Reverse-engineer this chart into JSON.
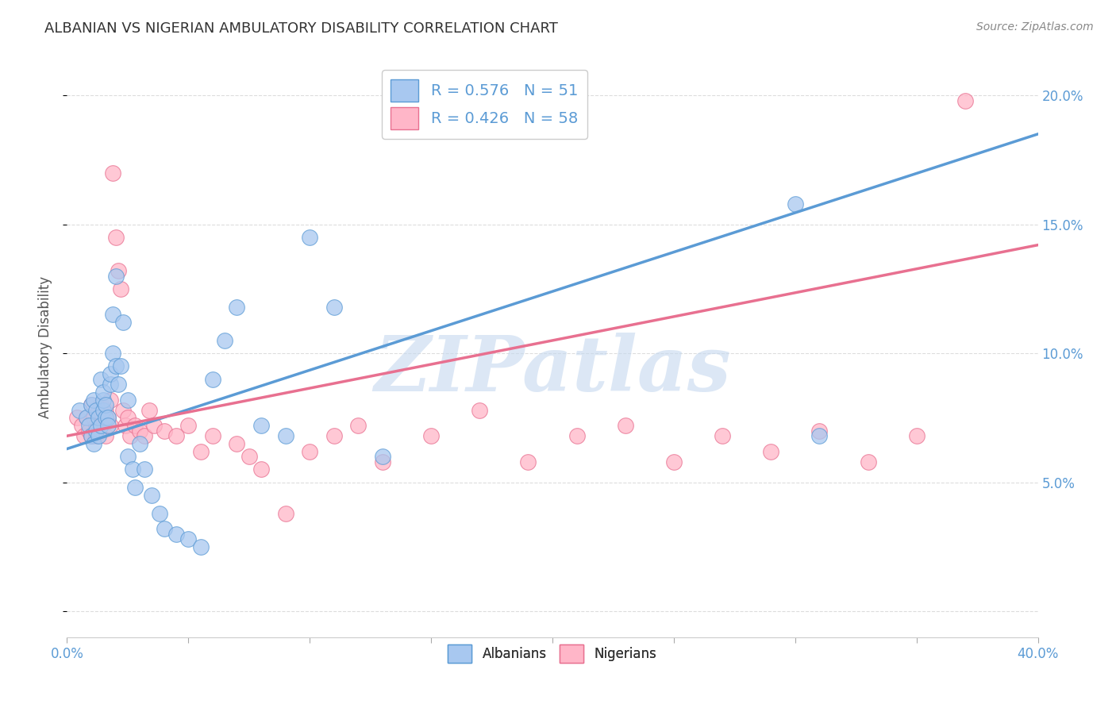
{
  "title": "ALBANIAN VS NIGERIAN AMBULATORY DISABILITY CORRELATION CHART",
  "source": "Source: ZipAtlas.com",
  "ylabel": "Ambulatory Disability",
  "xlim": [
    0.0,
    0.4
  ],
  "ylim": [
    -0.01,
    0.215
  ],
  "plot_ylim": [
    -0.01,
    0.215
  ],
  "xticks": [
    0.0,
    0.05,
    0.1,
    0.15,
    0.2,
    0.25,
    0.3,
    0.35,
    0.4
  ],
  "yticks": [
    0.0,
    0.05,
    0.1,
    0.15,
    0.2
  ],
  "xtick_labels": [
    "0.0%",
    "",
    "",
    "",
    "",
    "",
    "",
    "",
    "40.0%"
  ],
  "ytick_labels_right": [
    "",
    "5.0%",
    "10.0%",
    "15.0%",
    "20.0%"
  ],
  "albanian_color": "#A8C8F0",
  "nigerian_color": "#FFB6C8",
  "line_albanian_color": "#5B9BD5",
  "line_nigerian_color": "#E87090",
  "watermark": "ZIPatlas",
  "watermark_color": "#C5D8EF",
  "legend_R_albanian": "R = 0.576",
  "legend_N_albanian": "N = 51",
  "legend_R_nigerian": "R = 0.426",
  "legend_N_nigerian": "N = 58",
  "albanian_R": 0.576,
  "albanian_N": 51,
  "nigerian_R": 0.426,
  "nigerian_N": 58,
  "alb_line_x0": 0.0,
  "alb_line_y0": 0.063,
  "alb_line_x1": 0.4,
  "alb_line_y1": 0.185,
  "nig_line_x0": 0.0,
  "nig_line_y0": 0.068,
  "nig_line_x1": 0.4,
  "nig_line_y1": 0.142,
  "albanian_scatter_x": [
    0.005,
    0.008,
    0.009,
    0.01,
    0.01,
    0.011,
    0.011,
    0.012,
    0.012,
    0.013,
    0.013,
    0.014,
    0.014,
    0.015,
    0.015,
    0.015,
    0.016,
    0.016,
    0.017,
    0.017,
    0.018,
    0.018,
    0.019,
    0.019,
    0.02,
    0.02,
    0.021,
    0.022,
    0.023,
    0.025,
    0.025,
    0.027,
    0.028,
    0.03,
    0.032,
    0.035,
    0.038,
    0.04,
    0.045,
    0.05,
    0.055,
    0.06,
    0.065,
    0.07,
    0.08,
    0.09,
    0.1,
    0.11,
    0.13,
    0.3,
    0.31
  ],
  "albanian_scatter_y": [
    0.078,
    0.075,
    0.072,
    0.068,
    0.08,
    0.065,
    0.082,
    0.07,
    0.078,
    0.068,
    0.075,
    0.09,
    0.072,
    0.078,
    0.082,
    0.085,
    0.075,
    0.08,
    0.075,
    0.072,
    0.088,
    0.092,
    0.1,
    0.115,
    0.095,
    0.13,
    0.088,
    0.095,
    0.112,
    0.082,
    0.06,
    0.055,
    0.048,
    0.065,
    0.055,
    0.045,
    0.038,
    0.032,
    0.03,
    0.028,
    0.025,
    0.09,
    0.105,
    0.118,
    0.072,
    0.068,
    0.145,
    0.118,
    0.06,
    0.158,
    0.068
  ],
  "nigerian_scatter_x": [
    0.004,
    0.006,
    0.007,
    0.008,
    0.009,
    0.01,
    0.01,
    0.011,
    0.012,
    0.012,
    0.013,
    0.014,
    0.014,
    0.015,
    0.015,
    0.016,
    0.016,
    0.017,
    0.018,
    0.018,
    0.019,
    0.02,
    0.021,
    0.022,
    0.023,
    0.024,
    0.025,
    0.026,
    0.028,
    0.03,
    0.032,
    0.034,
    0.036,
    0.04,
    0.045,
    0.05,
    0.055,
    0.06,
    0.07,
    0.075,
    0.08,
    0.09,
    0.1,
    0.11,
    0.12,
    0.13,
    0.15,
    0.17,
    0.19,
    0.21,
    0.23,
    0.25,
    0.27,
    0.29,
    0.31,
    0.33,
    0.35,
    0.37
  ],
  "nigerian_scatter_y": [
    0.075,
    0.072,
    0.068,
    0.075,
    0.07,
    0.068,
    0.08,
    0.075,
    0.072,
    0.068,
    0.078,
    0.07,
    0.08,
    0.075,
    0.072,
    0.068,
    0.078,
    0.075,
    0.072,
    0.082,
    0.17,
    0.145,
    0.132,
    0.125,
    0.078,
    0.072,
    0.075,
    0.068,
    0.072,
    0.07,
    0.068,
    0.078,
    0.072,
    0.07,
    0.068,
    0.072,
    0.062,
    0.068,
    0.065,
    0.06,
    0.055,
    0.038,
    0.062,
    0.068,
    0.072,
    0.058,
    0.068,
    0.078,
    0.058,
    0.068,
    0.072,
    0.058,
    0.068,
    0.062,
    0.07,
    0.058,
    0.068,
    0.198
  ],
  "background_color": "#FFFFFF",
  "grid_color": "#DDDDDD"
}
